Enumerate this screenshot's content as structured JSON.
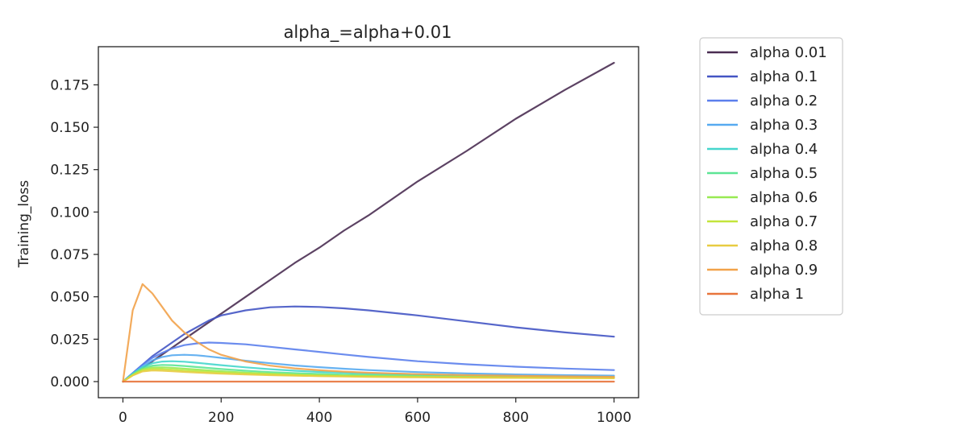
{
  "chart_data": {
    "type": "line",
    "title": "alpha_=alpha+0.01",
    "xlabel": "",
    "ylabel": "Training_loss",
    "xlim": [
      -50,
      1050
    ],
    "ylim": [
      -0.0095,
      0.1975
    ],
    "x_ticks": [
      0,
      200,
      400,
      600,
      800,
      1000
    ],
    "x_tick_labels": [
      "0",
      "200",
      "400",
      "600",
      "800",
      "1000"
    ],
    "y_ticks": [
      0.0,
      0.025,
      0.05,
      0.075,
      0.1,
      0.125,
      0.15,
      0.175
    ],
    "y_tick_labels": [
      "0.000",
      "0.025",
      "0.050",
      "0.075",
      "0.100",
      "0.125",
      "0.150",
      "0.175"
    ],
    "grid": false,
    "legend_position": "outside-right",
    "x": [
      0,
      20,
      40,
      60,
      80,
      100,
      125,
      150,
      175,
      200,
      250,
      300,
      350,
      400,
      450,
      500,
      600,
      700,
      800,
      900,
      1000
    ],
    "series": [
      {
        "name": "alpha 0.01",
        "color": "#4a2d52",
        "values": [
          0.0,
          0.004,
          0.008,
          0.012,
          0.016,
          0.02,
          0.025,
          0.03,
          0.035,
          0.04,
          0.05,
          0.06,
          0.07,
          0.079,
          0.089,
          0.098,
          0.118,
          0.136,
          0.155,
          0.172,
          0.188
        ]
      },
      {
        "name": "alpha 0.1",
        "color": "#4455c4",
        "values": [
          0.0,
          0.005,
          0.01,
          0.015,
          0.019,
          0.023,
          0.028,
          0.032,
          0.036,
          0.039,
          0.042,
          0.0438,
          0.0443,
          0.044,
          0.0432,
          0.042,
          0.039,
          0.0355,
          0.032,
          0.029,
          0.0265
        ]
      },
      {
        "name": "alpha 0.2",
        "color": "#5b7fec",
        "values": [
          0.0,
          0.005,
          0.01,
          0.014,
          0.017,
          0.0195,
          0.0215,
          0.0225,
          0.023,
          0.0228,
          0.022,
          0.0205,
          0.019,
          0.0175,
          0.016,
          0.0145,
          0.012,
          0.0102,
          0.0088,
          0.0077,
          0.0068
        ]
      },
      {
        "name": "alpha 0.3",
        "color": "#56aaf0",
        "values": [
          0.0,
          0.0048,
          0.009,
          0.0125,
          0.0145,
          0.0155,
          0.0158,
          0.0155,
          0.0148,
          0.014,
          0.0123,
          0.0108,
          0.0095,
          0.0085,
          0.0076,
          0.0068,
          0.0056,
          0.0048,
          0.0042,
          0.0038,
          0.0035
        ]
      },
      {
        "name": "alpha 0.4",
        "color": "#45d6cc",
        "values": [
          0.0,
          0.0045,
          0.0085,
          0.0108,
          0.0118,
          0.012,
          0.0117,
          0.0111,
          0.0104,
          0.0097,
          0.0084,
          0.0073,
          0.0064,
          0.0057,
          0.0052,
          0.0047,
          0.004,
          0.0035,
          0.0032,
          0.003,
          0.0028
        ]
      },
      {
        "name": "alpha 0.5",
        "color": "#5de595",
        "values": [
          0.0,
          0.0042,
          0.0078,
          0.0094,
          0.0098,
          0.0097,
          0.0092,
          0.0086,
          0.008,
          0.0074,
          0.0064,
          0.0056,
          0.005,
          0.0045,
          0.0041,
          0.0038,
          0.0033,
          0.003,
          0.0028,
          0.0026,
          0.0025
        ]
      },
      {
        "name": "alpha 0.6",
        "color": "#98ea52",
        "values": [
          0.0,
          0.004,
          0.0072,
          0.0083,
          0.0084,
          0.0081,
          0.0076,
          0.0071,
          0.0066,
          0.0061,
          0.0053,
          0.0047,
          0.0042,
          0.0038,
          0.0035,
          0.0033,
          0.003,
          0.0027,
          0.0025,
          0.0024,
          0.0023
        ]
      },
      {
        "name": "alpha 0.7",
        "color": "#c3e53b",
        "values": [
          0.0,
          0.0038,
          0.0066,
          0.0074,
          0.0073,
          0.007,
          0.0065,
          0.0061,
          0.0057,
          0.0053,
          0.0047,
          0.0042,
          0.0038,
          0.0035,
          0.0032,
          0.003,
          0.0027,
          0.0025,
          0.0023,
          0.0022,
          0.0021
        ]
      },
      {
        "name": "alpha 0.8",
        "color": "#e8cc42",
        "values": [
          0.0,
          0.0036,
          0.006,
          0.0066,
          0.0064,
          0.0061,
          0.0057,
          0.0053,
          0.005,
          0.0047,
          0.0042,
          0.0038,
          0.0035,
          0.0032,
          0.003,
          0.0028,
          0.0025,
          0.0023,
          0.0022,
          0.0021,
          0.002
        ]
      },
      {
        "name": "alpha 0.9",
        "color": "#f2a24a",
        "values": [
          0.0,
          0.042,
          0.0575,
          0.052,
          0.044,
          0.036,
          0.029,
          0.0235,
          0.019,
          0.0158,
          0.0118,
          0.0094,
          0.0078,
          0.0067,
          0.0059,
          0.0052,
          0.0044,
          0.0038,
          0.0034,
          0.0031,
          0.0028
        ]
      },
      {
        "name": "alpha 1",
        "color": "#e8743b",
        "values": [
          0.0,
          0.0,
          0.0,
          0.0,
          0.0,
          0.0,
          0.0,
          0.0,
          0.0,
          0.0,
          0.0,
          0.0,
          0.0,
          0.0,
          0.0,
          0.0,
          0.0,
          0.0,
          0.0,
          0.0,
          0.0
        ]
      }
    ]
  }
}
